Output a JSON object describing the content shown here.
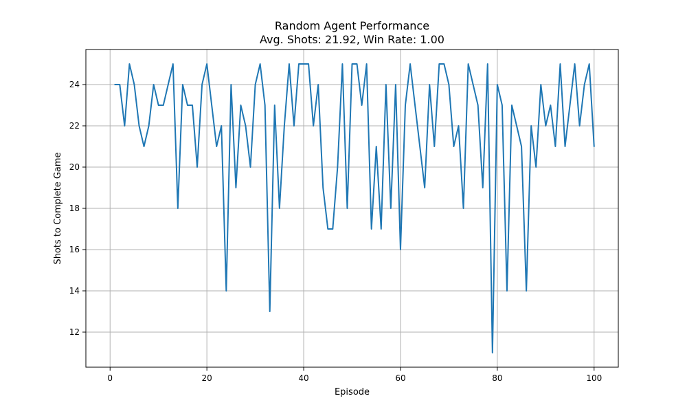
{
  "chart_data": {
    "type": "line",
    "title": "Random Agent Performance",
    "subtitle": "Avg. Shots: 21.92, Win Rate: 1.00",
    "xlabel": "Episode",
    "ylabel": "Shots to Complete Game",
    "xlim": [
      -5,
      105
    ],
    "ylim": [
      10.3,
      25.7
    ],
    "xticks": [
      0,
      20,
      40,
      60,
      80,
      100
    ],
    "yticks": [
      12,
      14,
      16,
      18,
      20,
      22,
      24
    ],
    "grid": true,
    "series": [
      {
        "color": "#1f77b4",
        "x": [
          1,
          2,
          3,
          4,
          5,
          6,
          7,
          8,
          9,
          10,
          11,
          12,
          13,
          14,
          15,
          16,
          17,
          18,
          19,
          20,
          21,
          22,
          23,
          24,
          25,
          26,
          27,
          28,
          29,
          30,
          31,
          32,
          33,
          34,
          35,
          36,
          37,
          38,
          39,
          40,
          41,
          42,
          43,
          44,
          45,
          46,
          47,
          48,
          49,
          50,
          51,
          52,
          53,
          54,
          55,
          56,
          57,
          58,
          59,
          60,
          61,
          62,
          63,
          64,
          65,
          66,
          67,
          68,
          69,
          70,
          71,
          72,
          73,
          74,
          75,
          76,
          77,
          78,
          79,
          80,
          81,
          82,
          83,
          84,
          85,
          86,
          87,
          88,
          89,
          90,
          91,
          92,
          93,
          94,
          95,
          96,
          97,
          98,
          99,
          100
        ],
        "y": [
          24,
          24,
          22,
          25,
          24,
          22,
          21,
          22,
          24,
          23,
          23,
          24,
          25,
          18,
          24,
          23,
          23,
          20,
          24,
          25,
          23,
          21,
          22,
          14,
          24,
          19,
          23,
          22,
          20,
          24,
          25,
          23,
          13,
          23,
          18,
          22,
          25,
          22,
          25,
          25,
          25,
          22,
          24,
          19,
          17,
          17,
          20,
          25,
          18,
          25,
          25,
          23,
          25,
          17,
          21,
          17,
          24,
          18,
          24,
          16,
          23,
          25,
          23,
          21,
          19,
          24,
          21,
          25,
          25,
          24,
          21,
          22,
          18,
          25,
          24,
          23,
          19,
          25,
          11,
          24,
          23,
          14,
          23,
          22,
          21,
          14,
          22,
          20,
          24,
          22,
          23,
          21,
          25,
          21,
          23,
          25,
          22,
          24,
          25,
          21
        ]
      }
    ]
  }
}
